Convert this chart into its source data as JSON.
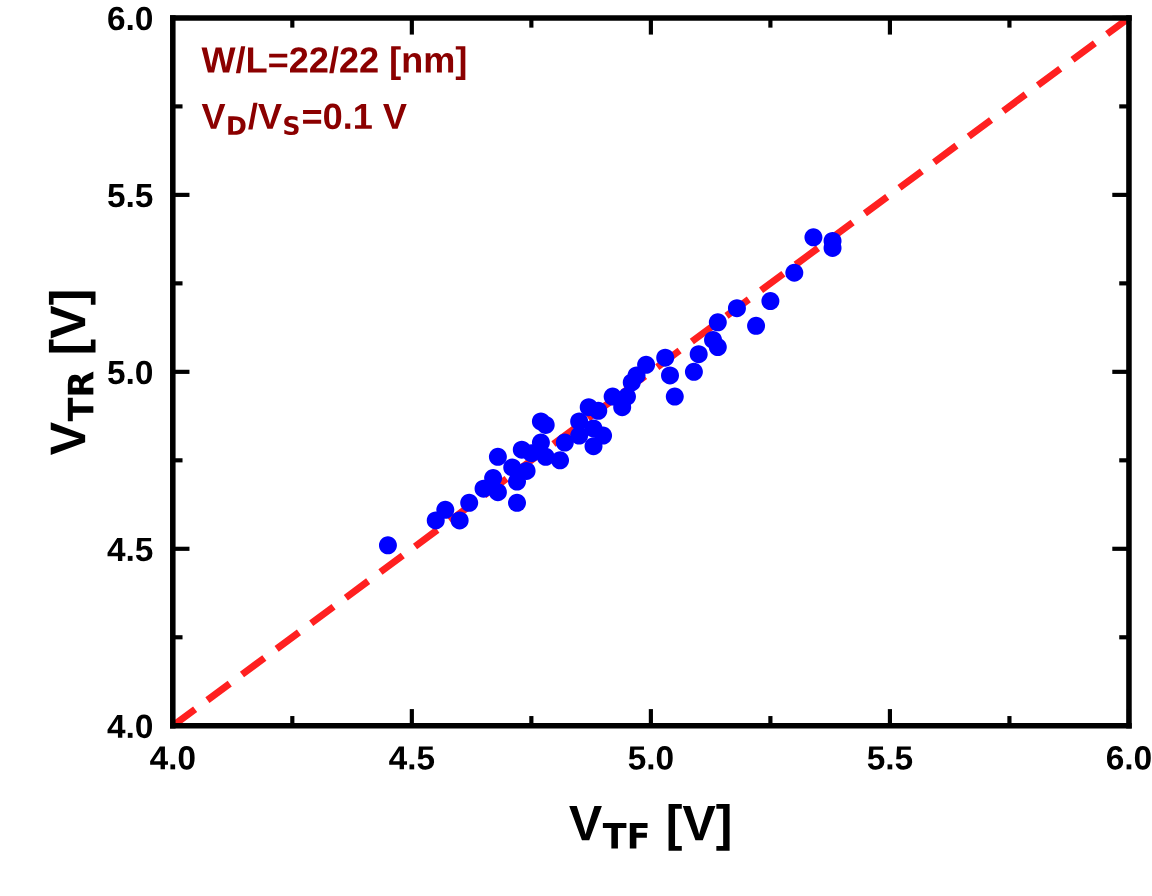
{
  "chart_data": {
    "type": "scatter",
    "xlabel": "V$_{TF}$ [V]",
    "ylabel": "V$_{TR}$ [V]",
    "annotations": [
      "W/L=22/22 [nm]",
      "V$_{D}$/V$_{S}$=0.1 V"
    ],
    "xlim": [
      4.0,
      6.0
    ],
    "ylim": [
      4.0,
      6.0
    ],
    "xticks": [
      "4.0",
      {
        "value": 4.25,
        "label": null
      },
      {
        "value": 4.5,
        "label": "4.5"
      },
      {
        "value": 4.75,
        "label": null
      },
      {
        "value": 5.0,
        "label": "5.0"
      },
      {
        "value": 5.25,
        "label": null
      },
      {
        "value": 5.5,
        "label": "5.5"
      },
      {
        "value": 5.75,
        "label": null
      },
      {
        "value": 6.0,
        "label": "6.0"
      }
    ],
    "yticks": [
      {
        "value": 4.0,
        "label": "4.0"
      },
      {
        "value": 4.25,
        "label": null
      },
      {
        "value": 4.5,
        "label": "4.5"
      },
      {
        "value": 4.75,
        "label": null
      },
      {
        "value": 5.0,
        "label": "5.0"
      },
      {
        "value": 5.25,
        "label": null
      },
      {
        "value": 5.5,
        "label": "5.5"
      },
      {
        "value": 5.75,
        "label": null
      },
      {
        "value": 6.0,
        "label": "6.0"
      }
    ],
    "grid": false,
    "legend": false,
    "series": [
      {
        "type": "line",
        "color": "#ff2020",
        "line_style": "dashed",
        "marker": "none",
        "x": [
          4.0,
          6.0
        ],
        "values": [
          4.0,
          6.0
        ]
      },
      {
        "color": "#0000ff",
        "marker": "circle",
        "x": [
          4.45,
          4.55,
          4.57,
          4.6,
          4.62,
          4.65,
          4.67,
          4.68,
          4.68,
          4.71,
          4.72,
          4.72,
          4.73,
          4.74,
          4.75,
          4.77,
          4.78,
          4.77,
          4.78,
          4.81,
          4.82,
          4.85,
          4.85,
          4.87,
          4.88,
          4.88,
          4.9,
          4.89,
          4.92,
          4.94,
          4.95,
          4.96,
          4.97,
          4.99,
          5.03,
          5.04,
          5.05,
          5.09,
          5.1,
          5.13,
          5.14,
          5.14,
          5.18,
          5.22,
          5.25,
          5.3,
          5.34,
          5.38,
          5.38
        ],
        "values": [
          4.51,
          4.58,
          4.61,
          4.58,
          4.63,
          4.67,
          4.7,
          4.66,
          4.76,
          4.73,
          4.63,
          4.69,
          4.78,
          4.72,
          4.77,
          4.86,
          4.85,
          4.8,
          4.76,
          4.75,
          4.8,
          4.86,
          4.82,
          4.9,
          4.79,
          4.84,
          4.82,
          4.89,
          4.93,
          4.9,
          4.93,
          4.97,
          4.99,
          5.02,
          5.04,
          4.99,
          4.93,
          5.0,
          5.05,
          5.09,
          5.07,
          5.14,
          5.18,
          5.13,
          5.2,
          5.28,
          5.38,
          5.37,
          5.35
        ]
      }
    ]
  }
}
